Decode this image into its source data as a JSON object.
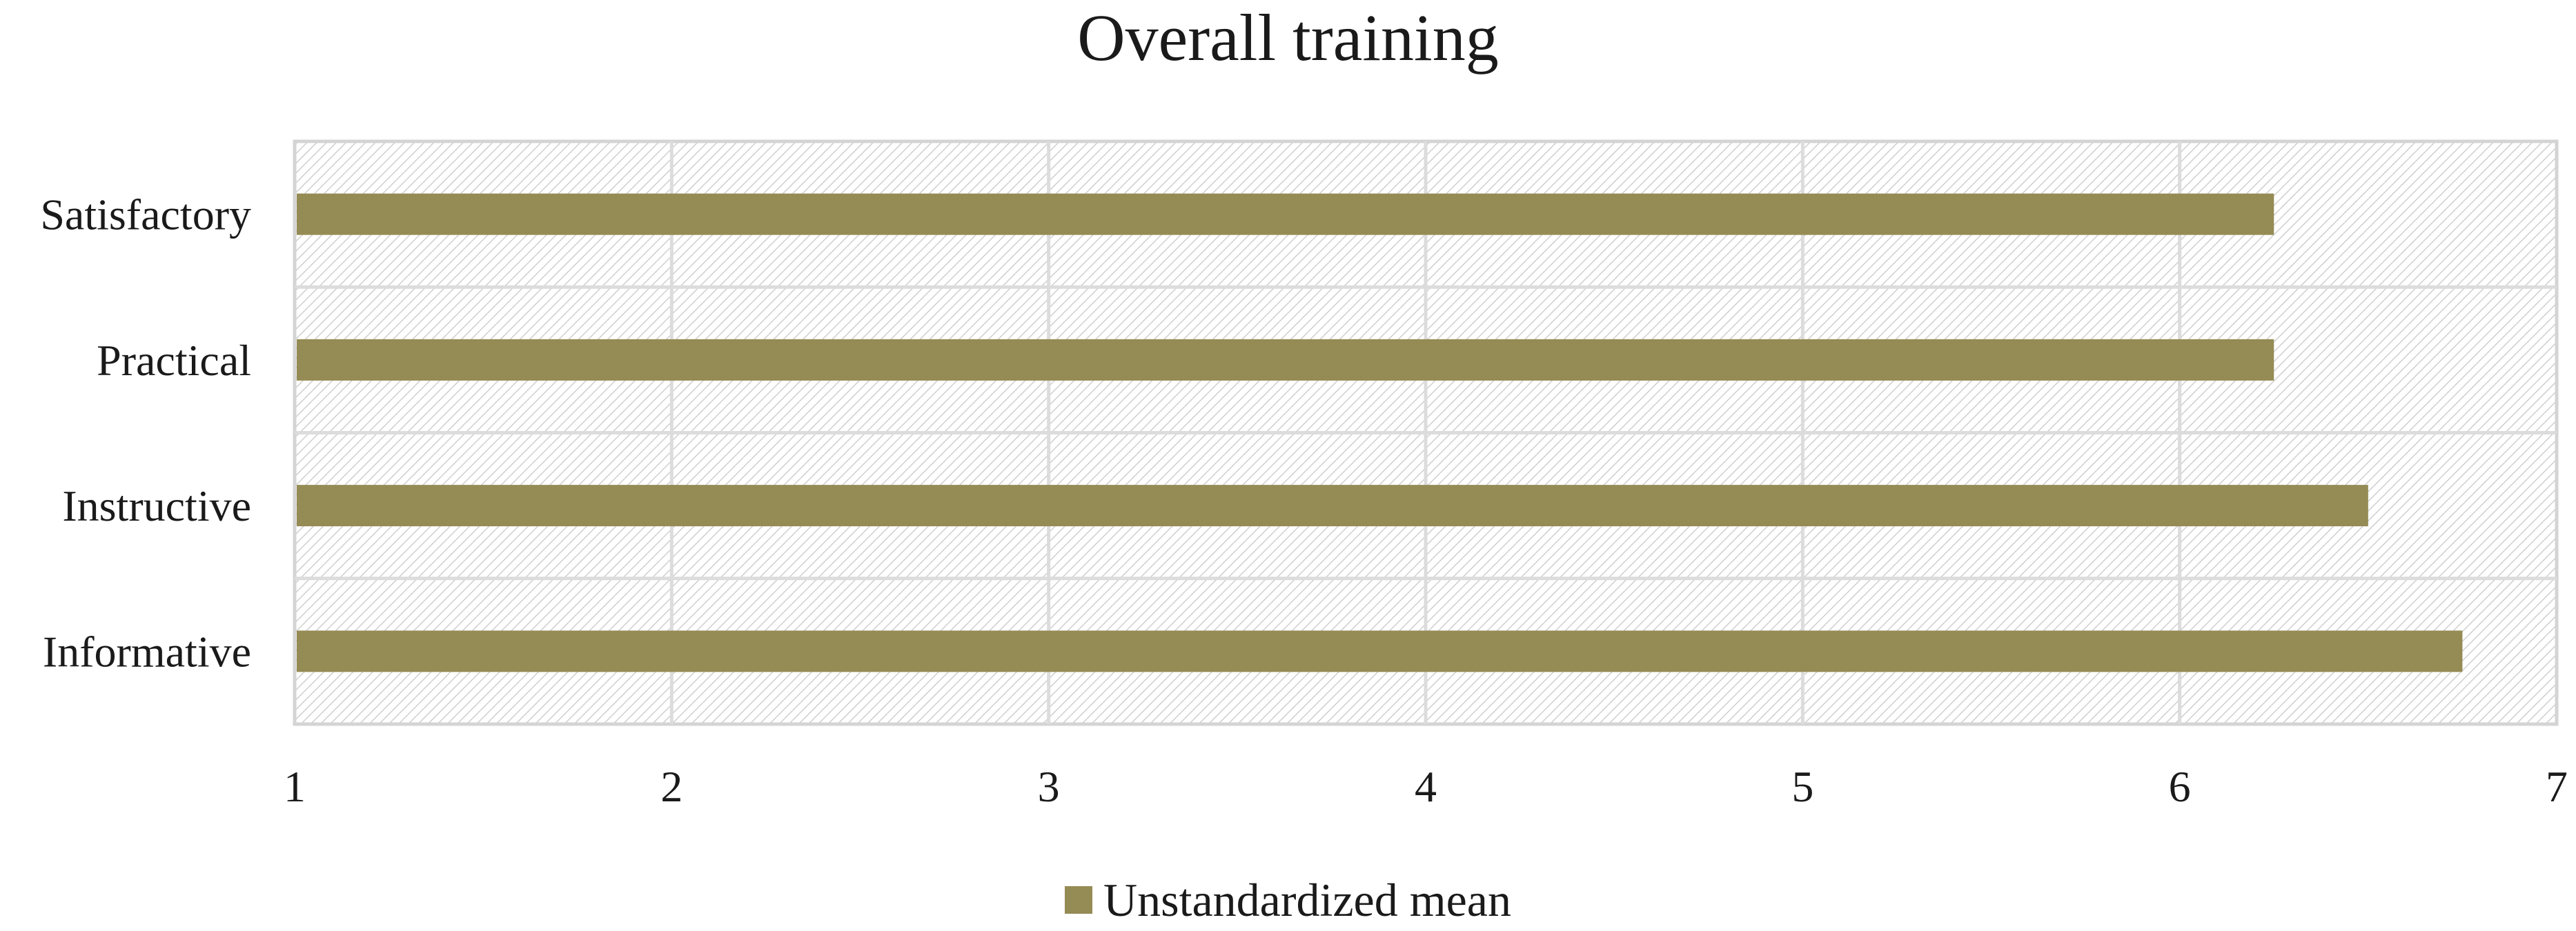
{
  "chart_data": {
    "type": "bar",
    "orientation": "horizontal",
    "title": "Overall training",
    "categories": [
      "Satisfactory",
      "Practical",
      "Instructive",
      "Informative"
    ],
    "series": [
      {
        "name": "Unstandardized mean",
        "values": [
          6.25,
          6.25,
          6.5,
          6.75
        ],
        "color": "#958b54"
      }
    ],
    "xlim": [
      1,
      7
    ],
    "xticks": [
      "1",
      "2",
      "3",
      "4",
      "5",
      "6",
      "7"
    ],
    "xlabel": "",
    "ylabel": "",
    "grid": true,
    "legend_position": "bottom",
    "plot_background": "hatched light gray"
  }
}
